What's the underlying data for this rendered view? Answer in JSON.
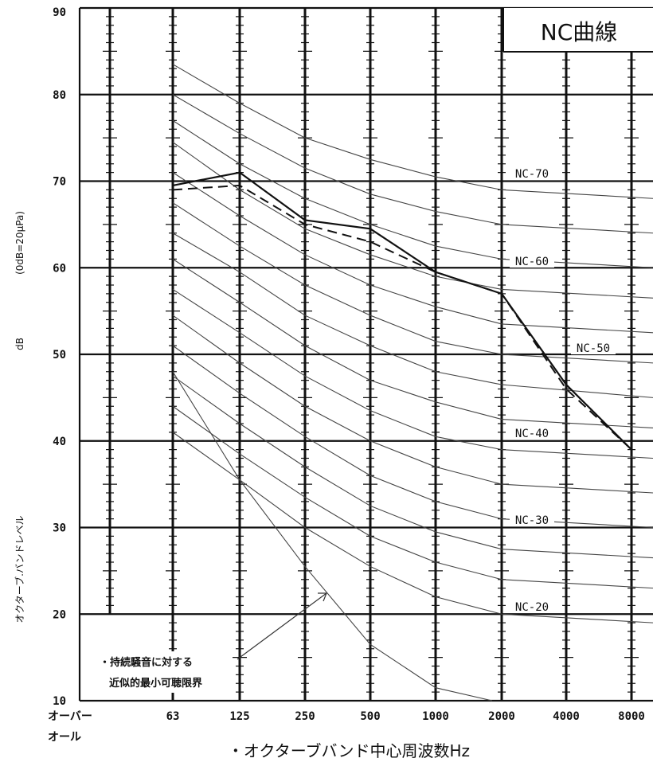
{
  "chart_data": {
    "type": "line",
    "title": "NC曲線",
    "xlabel": "・オクターブバンド中心周波数Hz",
    "ylabel_main": "オクターブ.バンドレベル",
    "ylabel_unit": "dB",
    "ylabel_ref": "(0dB=20μPa)",
    "x_categories": [
      "オーバーオール",
      "63",
      "125",
      "250",
      "500",
      "1000",
      "2000",
      "4000",
      "8000"
    ],
    "ylim": [
      10,
      90
    ],
    "y_ticks": [
      "10",
      "20",
      "30",
      "40",
      "50",
      "60",
      "70",
      "80",
      "90"
    ],
    "nc_labels": [
      {
        "text": "NC-70",
        "level": 70
      },
      {
        "text": "NC-60",
        "level": 60
      },
      {
        "text": "NC-50",
        "level": 50
      },
      {
        "text": "NC-40",
        "level": 40
      },
      {
        "text": "NC-30",
        "level": 30
      },
      {
        "text": "NC-20",
        "level": 20
      }
    ],
    "nc_curves": [
      [
        83.5,
        79,
        75,
        72.5,
        70.5,
        69,
        68
      ],
      [
        80,
        75.5,
        71.5,
        68.5,
        66.5,
        65,
        64
      ],
      [
        77,
        72,
        68,
        65,
        62.5,
        61,
        60
      ],
      [
        74.5,
        69,
        64.5,
        61.5,
        59,
        57.5,
        56.5
      ],
      [
        71,
        66,
        61.5,
        58,
        55.5,
        53.5,
        52.5
      ],
      [
        67.5,
        62.5,
        58,
        54.5,
        51.5,
        50,
        49
      ],
      [
        64,
        59.5,
        54.5,
        51,
        48,
        46.5,
        45
      ],
      [
        61,
        56,
        51,
        47,
        44.5,
        42.5,
        41.5
      ],
      [
        57.5,
        52.5,
        47.5,
        43.5,
        40.5,
        39,
        38
      ],
      [
        54.5,
        49,
        44,
        40,
        37,
        35,
        34
      ],
      [
        51,
        45.5,
        40.5,
        36,
        33,
        31,
        30
      ],
      [
        47.5,
        42,
        37,
        32.5,
        29.5,
        27.5,
        26.5
      ],
      [
        44,
        38.5,
        33.5,
        29,
        26,
        24,
        23
      ],
      [
        41,
        35.5,
        30,
        25.5,
        22,
        20,
        19
      ]
    ],
    "threshold_curve": [
      48,
      35.5,
      25.5,
      16.5,
      11.5,
      10
    ],
    "measured_solid": [
      69.5,
      71,
      65.5,
      64.5,
      59.5,
      57,
      46.5,
      39
    ],
    "measured_dashed": [
      69,
      69.5,
      65,
      63,
      59.5,
      57,
      46,
      39
    ],
    "annotation_line1": "・持続騒音に対する",
    "annotation_line2": "近似的最小可聴限界"
  }
}
